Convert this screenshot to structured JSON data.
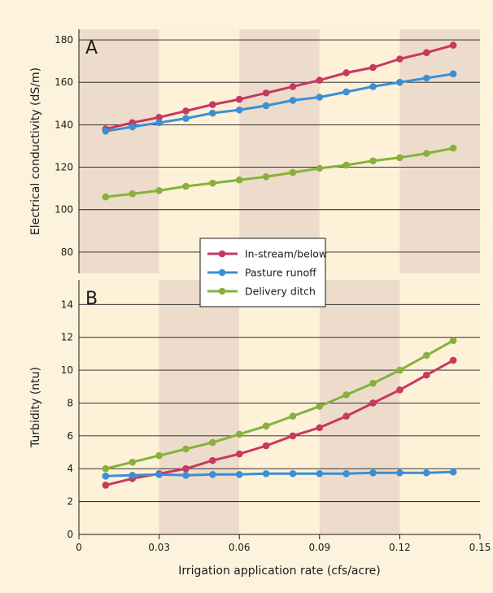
{
  "colors": {
    "background": "#fdf3dc",
    "band_light": "#fdf1d8",
    "band_dark": "#eddccb",
    "in_stream": "#c8385f",
    "pasture": "#3a8fd6",
    "delivery": "#86b23c"
  },
  "legend": {
    "placement": "center-left",
    "entries": [
      "In-stream/below",
      "Pasture runoff",
      "Delivery ditch"
    ]
  },
  "x_axis": {
    "label": "Irrigation application rate (cfs/acre)",
    "ticks": [
      "0",
      "0.03",
      "0.06",
      "0.09",
      "0.12",
      "0.15"
    ]
  },
  "chart_data": [
    {
      "type": "line",
      "panel": "A",
      "ylabel": "Electrical conductivity (dS/m)",
      "xlim": [
        0,
        0.15
      ],
      "ylim": [
        70,
        185
      ],
      "yticks": [
        80,
        100,
        120,
        140,
        160,
        180
      ],
      "grid": true,
      "x": [
        0.01,
        0.02,
        0.03,
        0.04,
        0.05,
        0.06,
        0.07,
        0.08,
        0.09,
        0.1,
        0.11,
        0.12,
        0.13,
        0.14
      ],
      "series": [
        {
          "name": "In-stream/below",
          "values": [
            138,
            141,
            143.5,
            146.5,
            149.5,
            152,
            155,
            158,
            161,
            164.5,
            167,
            171,
            174,
            177.5
          ]
        },
        {
          "name": "Pasture runoff",
          "values": [
            137,
            139,
            141,
            143,
            145.5,
            147,
            149,
            151.5,
            153,
            155.5,
            158,
            160,
            162,
            164
          ]
        },
        {
          "name": "Delivery ditch",
          "values": [
            106,
            107.5,
            109,
            111,
            112.5,
            114,
            115.5,
            117.5,
            119.5,
            121,
            123,
            124.5,
            126.5,
            129
          ]
        }
      ]
    },
    {
      "type": "line",
      "panel": "B",
      "ylabel": "Turbidity (ntu)",
      "xlabel": "Irrigation application rate (cfs/acre)",
      "xlim": [
        0,
        0.15
      ],
      "ylim": [
        0,
        15.5
      ],
      "xticks": [
        0,
        0.03,
        0.06,
        0.09,
        0.12,
        0.15
      ],
      "yticks": [
        0,
        2,
        4,
        6,
        8,
        10,
        12,
        14
      ],
      "grid": true,
      "x": [
        0.01,
        0.02,
        0.03,
        0.04,
        0.05,
        0.06,
        0.07,
        0.08,
        0.09,
        0.1,
        0.11,
        0.12,
        0.13,
        0.14
      ],
      "series": [
        {
          "name": "In-stream/below",
          "values": [
            3.0,
            3.4,
            3.7,
            4.0,
            4.5,
            4.9,
            5.4,
            6.0,
            6.5,
            7.2,
            8.0,
            8.8,
            9.7,
            10.6
          ]
        },
        {
          "name": "Pasture runoff",
          "values": [
            3.55,
            3.6,
            3.65,
            3.6,
            3.65,
            3.65,
            3.7,
            3.7,
            3.7,
            3.7,
            3.75,
            3.75,
            3.75,
            3.8
          ]
        },
        {
          "name": "Delivery ditch",
          "values": [
            4.0,
            4.4,
            4.8,
            5.2,
            5.6,
            6.1,
            6.6,
            7.2,
            7.8,
            8.5,
            9.2,
            10.0,
            10.9,
            11.8
          ]
        }
      ]
    }
  ]
}
